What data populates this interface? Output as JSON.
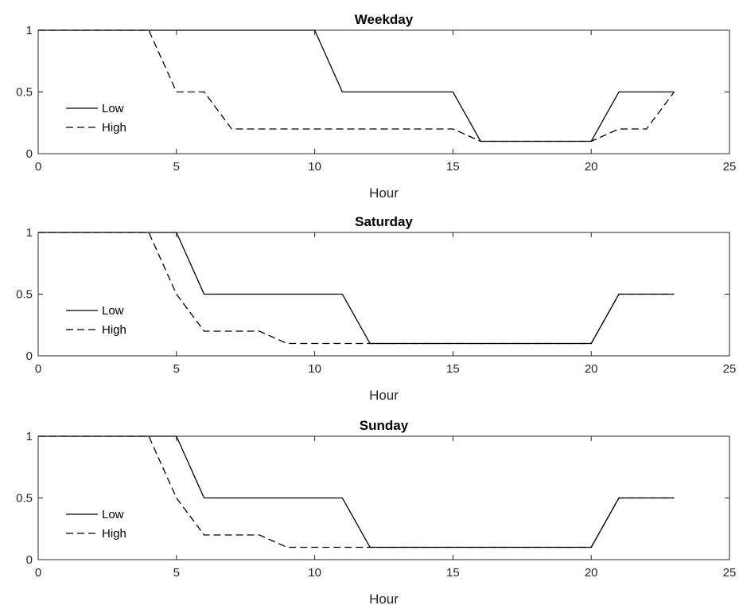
{
  "chart_data": [
    {
      "type": "line",
      "title": "Weekday",
      "xlabel": "Hour",
      "ylabel": "",
      "xlim": [
        0,
        25
      ],
      "ylim": [
        0,
        1
      ],
      "xticks": [
        "0",
        "5",
        "10",
        "15",
        "20",
        "25"
      ],
      "yticks": [
        "0",
        "0.5",
        "1"
      ],
      "grid": false,
      "legend_position": "left",
      "series": [
        {
          "name": "Low",
          "line_style": "solid",
          "color": "#000000",
          "x": [
            0,
            1,
            2,
            3,
            4,
            5,
            6,
            7,
            8,
            9,
            10,
            11,
            12,
            13,
            14,
            15,
            16,
            17,
            18,
            19,
            20,
            21,
            22,
            23
          ],
          "y": [
            1,
            1,
            1,
            1,
            1,
            1,
            1,
            1,
            1,
            1,
            1,
            0.5,
            0.5,
            0.5,
            0.5,
            0.5,
            0.1,
            0.1,
            0.1,
            0.1,
            0.1,
            0.5,
            0.5,
            0.5
          ]
        },
        {
          "name": "High",
          "line_style": "dashed",
          "color": "#000000",
          "x": [
            0,
            1,
            2,
            3,
            4,
            5,
            6,
            7,
            8,
            9,
            10,
            11,
            12,
            13,
            14,
            15,
            16,
            17,
            18,
            19,
            20,
            21,
            22,
            23
          ],
          "y": [
            1,
            1,
            1,
            1,
            1,
            0.5,
            0.5,
            0.2,
            0.2,
            0.2,
            0.2,
            0.2,
            0.2,
            0.2,
            0.2,
            0.2,
            0.1,
            0.1,
            0.1,
            0.1,
            0.1,
            0.2,
            0.2,
            0.5
          ]
        }
      ]
    },
    {
      "type": "line",
      "title": "Saturday",
      "xlabel": "Hour",
      "ylabel": "",
      "xlim": [
        0,
        25
      ],
      "ylim": [
        0,
        1
      ],
      "xticks": [
        "0",
        "5",
        "10",
        "15",
        "20",
        "25"
      ],
      "yticks": [
        "0",
        "0.5",
        "1"
      ],
      "grid": false,
      "legend_position": "left",
      "series": [
        {
          "name": "Low",
          "line_style": "solid",
          "color": "#000000",
          "x": [
            0,
            1,
            2,
            3,
            4,
            5,
            6,
            7,
            8,
            9,
            10,
            11,
            12,
            13,
            14,
            15,
            16,
            17,
            18,
            19,
            20,
            21,
            22,
            23
          ],
          "y": [
            1,
            1,
            1,
            1,
            1,
            1,
            0.5,
            0.5,
            0.5,
            0.5,
            0.5,
            0.5,
            0.1,
            0.1,
            0.1,
            0.1,
            0.1,
            0.1,
            0.1,
            0.1,
            0.1,
            0.5,
            0.5,
            0.5
          ]
        },
        {
          "name": "High",
          "line_style": "dashed",
          "color": "#000000",
          "x": [
            0,
            1,
            2,
            3,
            4,
            5,
            6,
            7,
            8,
            9,
            10,
            11,
            12,
            13,
            14,
            15,
            16,
            17,
            18,
            19,
            20,
            21,
            22,
            23
          ],
          "y": [
            1,
            1,
            1,
            1,
            1,
            0.5,
            0.2,
            0.2,
            0.2,
            0.1,
            0.1,
            0.1,
            0.1,
            0.1,
            0.1,
            0.1,
            0.1,
            0.1,
            0.1,
            0.1,
            0.1,
            0.5,
            0.5,
            0.5
          ]
        }
      ]
    },
    {
      "type": "line",
      "title": "Sunday",
      "xlabel": "Hour",
      "ylabel": "",
      "xlim": [
        0,
        25
      ],
      "ylim": [
        0,
        1
      ],
      "xticks": [
        "0",
        "5",
        "10",
        "15",
        "20",
        "25"
      ],
      "yticks": [
        "0",
        "0.5",
        "1"
      ],
      "grid": false,
      "legend_position": "left",
      "series": [
        {
          "name": "Low",
          "line_style": "solid",
          "color": "#000000",
          "x": [
            0,
            1,
            2,
            3,
            4,
            5,
            6,
            7,
            8,
            9,
            10,
            11,
            12,
            13,
            14,
            15,
            16,
            17,
            18,
            19,
            20,
            21,
            22,
            23
          ],
          "y": [
            1,
            1,
            1,
            1,
            1,
            1,
            0.5,
            0.5,
            0.5,
            0.5,
            0.5,
            0.5,
            0.1,
            0.1,
            0.1,
            0.1,
            0.1,
            0.1,
            0.1,
            0.1,
            0.1,
            0.5,
            0.5,
            0.5
          ]
        },
        {
          "name": "High",
          "line_style": "dashed",
          "color": "#000000",
          "x": [
            0,
            1,
            2,
            3,
            4,
            5,
            6,
            7,
            8,
            9,
            10,
            11,
            12,
            13,
            14,
            15,
            16,
            17,
            18,
            19,
            20,
            21,
            22,
            23
          ],
          "y": [
            1,
            1,
            1,
            1,
            1,
            0.5,
            0.2,
            0.2,
            0.2,
            0.1,
            0.1,
            0.1,
            0.1,
            0.1,
            0.1,
            0.1,
            0.1,
            0.1,
            0.1,
            0.1,
            0.1,
            0.5,
            0.5,
            0.5
          ]
        }
      ]
    }
  ]
}
